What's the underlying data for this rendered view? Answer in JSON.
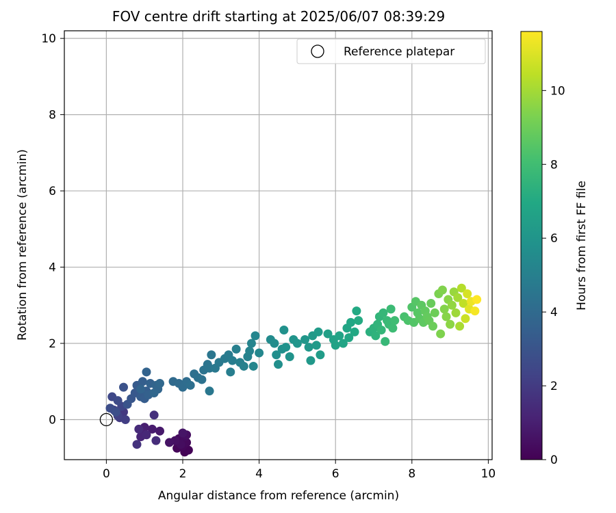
{
  "chart_data": {
    "type": "scatter",
    "title": "FOV centre drift starting at 2025/06/07 08:39:29",
    "xlabel": "Angular distance from reference (arcmin)",
    "ylabel": "Rotation from reference (arcmin)",
    "xlim": [
      -1.1,
      10.1
    ],
    "ylim": [
      -1.05,
      10.2
    ],
    "xticks": [
      0,
      2,
      4,
      6,
      8,
      10
    ],
    "yticks": [
      0,
      2,
      4,
      6,
      8,
      10
    ],
    "grid": true,
    "legend": {
      "placement": "top-right",
      "entries": [
        "Reference platepar"
      ]
    },
    "reference_point": {
      "label": "Reference platepar",
      "x": 0,
      "y": 0
    },
    "colorbar": {
      "label": "Hours from first FF file",
      "colormap": "viridis",
      "range": [
        0,
        11.6
      ],
      "ticks": [
        0,
        2,
        4,
        6,
        8,
        10
      ]
    },
    "series": [
      {
        "color_by": "Hours from first FF file",
        "points": [
          [
            2.05,
            -0.85,
            0.05
          ],
          [
            2.15,
            -0.8,
            0.1
          ],
          [
            1.85,
            -0.75,
            0.15
          ],
          [
            2.0,
            -0.7,
            0.2
          ],
          [
            2.1,
            -0.6,
            0.25
          ],
          [
            1.9,
            -0.5,
            0.3
          ],
          [
            2.05,
            -0.45,
            0.35
          ],
          [
            1.95,
            -0.65,
            0.4
          ],
          [
            2.1,
            -0.4,
            0.45
          ],
          [
            1.8,
            -0.55,
            0.5
          ],
          [
            1.65,
            -0.6,
            0.6
          ],
          [
            2.0,
            -0.35,
            0.65
          ],
          [
            1.4,
            -0.3,
            0.8
          ],
          [
            1.2,
            -0.25,
            0.9
          ],
          [
            1.0,
            -0.2,
            1.0
          ],
          [
            0.95,
            -0.35,
            1.1
          ],
          [
            0.9,
            -0.45,
            1.2
          ],
          [
            1.05,
            -0.4,
            1.3
          ],
          [
            0.85,
            -0.25,
            1.4
          ],
          [
            1.3,
            -0.55,
            1.5
          ],
          [
            1.25,
            0.12,
            1.6
          ],
          [
            0.8,
            -0.65,
            1.7
          ],
          [
            0.45,
            0.2,
            1.9
          ],
          [
            0.35,
            0.05,
            2.0
          ],
          [
            0.5,
            0.0,
            2.1
          ],
          [
            0.3,
            0.1,
            2.2
          ],
          [
            0.2,
            0.25,
            2.3
          ],
          [
            0.4,
            0.35,
            2.4
          ],
          [
            0.15,
            0.6,
            2.5
          ],
          [
            0.3,
            0.5,
            2.6
          ],
          [
            0.1,
            0.3,
            2.7
          ],
          [
            0.25,
            0.2,
            2.8
          ],
          [
            0.45,
            0.85,
            2.9
          ],
          [
            0.55,
            0.4,
            3.0
          ],
          [
            0.65,
            0.55,
            3.1
          ],
          [
            0.75,
            0.7,
            3.2
          ],
          [
            0.8,
            0.9,
            3.3
          ],
          [
            0.9,
            0.6,
            3.35
          ],
          [
            1.0,
            0.55,
            3.4
          ],
          [
            1.05,
            0.75,
            3.45
          ],
          [
            0.95,
            1.0,
            3.5
          ],
          [
            1.1,
            0.65,
            3.55
          ],
          [
            1.15,
            0.95,
            3.6
          ],
          [
            1.05,
            1.25,
            3.65
          ],
          [
            0.9,
            0.8,
            3.7
          ],
          [
            1.3,
            0.9,
            3.75
          ],
          [
            1.35,
            0.8,
            3.8
          ],
          [
            1.25,
            0.7,
            3.85
          ],
          [
            1.4,
            0.95,
            3.9
          ],
          [
            1.75,
            1.0,
            4.0
          ],
          [
            1.9,
            0.95,
            4.05
          ],
          [
            2.0,
            0.85,
            4.1
          ],
          [
            2.1,
            1.0,
            4.15
          ],
          [
            2.2,
            0.9,
            4.2
          ],
          [
            2.3,
            1.2,
            4.25
          ],
          [
            2.4,
            1.1,
            4.3
          ],
          [
            2.5,
            1.05,
            4.35
          ],
          [
            2.55,
            1.3,
            4.4
          ],
          [
            2.65,
            1.45,
            4.45
          ],
          [
            2.7,
            1.35,
            4.5
          ],
          [
            2.75,
            1.7,
            4.55
          ],
          [
            2.7,
            0.75,
            4.6
          ],
          [
            2.85,
            1.35,
            4.65
          ],
          [
            2.95,
            1.5,
            4.7
          ],
          [
            3.1,
            1.6,
            4.75
          ],
          [
            3.2,
            1.7,
            4.8
          ],
          [
            3.3,
            1.55,
            4.85
          ],
          [
            3.25,
            1.25,
            4.9
          ],
          [
            3.4,
            1.85,
            4.95
          ],
          [
            3.5,
            1.5,
            5.0
          ],
          [
            3.6,
            1.4,
            5.05
          ],
          [
            3.7,
            1.65,
            5.1
          ],
          [
            3.75,
            1.8,
            5.15
          ],
          [
            3.8,
            2.0,
            5.2
          ],
          [
            3.9,
            2.2,
            5.25
          ],
          [
            3.85,
            1.4,
            5.3
          ],
          [
            4.0,
            1.75,
            5.35
          ],
          [
            4.3,
            2.1,
            5.5
          ],
          [
            4.4,
            2.0,
            5.6
          ],
          [
            4.45,
            1.7,
            5.65
          ],
          [
            4.5,
            1.45,
            5.7
          ],
          [
            4.6,
            1.85,
            5.75
          ],
          [
            4.65,
            2.35,
            5.8
          ],
          [
            4.7,
            1.9,
            5.85
          ],
          [
            4.8,
            1.65,
            5.9
          ],
          [
            4.9,
            2.1,
            5.95
          ],
          [
            5.0,
            2.0,
            6.0
          ],
          [
            5.2,
            2.1,
            6.05
          ],
          [
            5.3,
            1.9,
            6.1
          ],
          [
            5.35,
            1.55,
            6.15
          ],
          [
            5.4,
            2.2,
            6.2
          ],
          [
            5.5,
            1.95,
            6.25
          ],
          [
            5.55,
            2.3,
            6.3
          ],
          [
            5.6,
            1.7,
            6.35
          ],
          [
            5.8,
            2.25,
            6.5
          ],
          [
            5.95,
            2.1,
            6.6
          ],
          [
            6.0,
            1.95,
            6.65
          ],
          [
            6.1,
            2.2,
            6.7
          ],
          [
            6.2,
            2.0,
            6.75
          ],
          [
            6.3,
            2.4,
            6.8
          ],
          [
            6.35,
            2.15,
            6.85
          ],
          [
            6.4,
            2.55,
            6.9
          ],
          [
            6.5,
            2.3,
            6.95
          ],
          [
            6.55,
            2.85,
            7.0
          ],
          [
            6.6,
            2.6,
            7.05
          ],
          [
            6.9,
            2.3,
            7.3
          ],
          [
            7.0,
            2.4,
            7.4
          ],
          [
            7.05,
            2.2,
            7.45
          ],
          [
            7.1,
            2.5,
            7.5
          ],
          [
            7.15,
            2.7,
            7.55
          ],
          [
            7.2,
            2.35,
            7.6
          ],
          [
            7.25,
            2.8,
            7.65
          ],
          [
            7.3,
            2.05,
            7.7
          ],
          [
            7.35,
            2.6,
            7.75
          ],
          [
            7.4,
            2.5,
            7.8
          ],
          [
            7.45,
            2.9,
            7.85
          ],
          [
            7.5,
            2.4,
            7.9
          ],
          [
            7.55,
            2.6,
            7.95
          ],
          [
            7.8,
            2.7,
            8.2
          ],
          [
            7.9,
            2.6,
            8.3
          ],
          [
            8.0,
            2.95,
            8.4
          ],
          [
            8.05,
            2.55,
            8.45
          ],
          [
            8.1,
            3.1,
            8.5
          ],
          [
            8.15,
            2.8,
            8.55
          ],
          [
            8.2,
            2.65,
            8.6
          ],
          [
            8.25,
            3.0,
            8.65
          ],
          [
            8.3,
            2.55,
            8.7
          ],
          [
            8.35,
            2.85,
            8.75
          ],
          [
            8.4,
            2.7,
            8.8
          ],
          [
            8.45,
            2.6,
            8.85
          ],
          [
            8.5,
            3.05,
            8.9
          ],
          [
            8.55,
            2.45,
            8.95
          ],
          [
            8.6,
            2.8,
            9.0
          ],
          [
            8.7,
            3.3,
            9.3
          ],
          [
            8.75,
            2.25,
            9.35
          ],
          [
            8.8,
            3.4,
            9.4
          ],
          [
            8.85,
            2.9,
            9.45
          ],
          [
            8.9,
            2.7,
            9.5
          ],
          [
            8.95,
            3.15,
            9.55
          ],
          [
            9.0,
            2.5,
            9.6
          ],
          [
            9.05,
            3.0,
            9.7
          ],
          [
            9.1,
            3.35,
            9.8
          ],
          [
            9.15,
            2.8,
            9.9
          ],
          [
            9.2,
            3.2,
            10.0
          ],
          [
            9.25,
            2.45,
            10.1
          ],
          [
            9.3,
            3.45,
            10.3
          ],
          [
            9.35,
            3.05,
            10.5
          ],
          [
            9.4,
            2.65,
            10.7
          ],
          [
            9.45,
            3.3,
            10.9
          ],
          [
            9.5,
            2.9,
            11.1
          ],
          [
            9.55,
            3.1,
            11.3
          ],
          [
            9.65,
            2.85,
            11.45
          ],
          [
            9.7,
            3.15,
            11.6
          ]
        ]
      }
    ]
  }
}
